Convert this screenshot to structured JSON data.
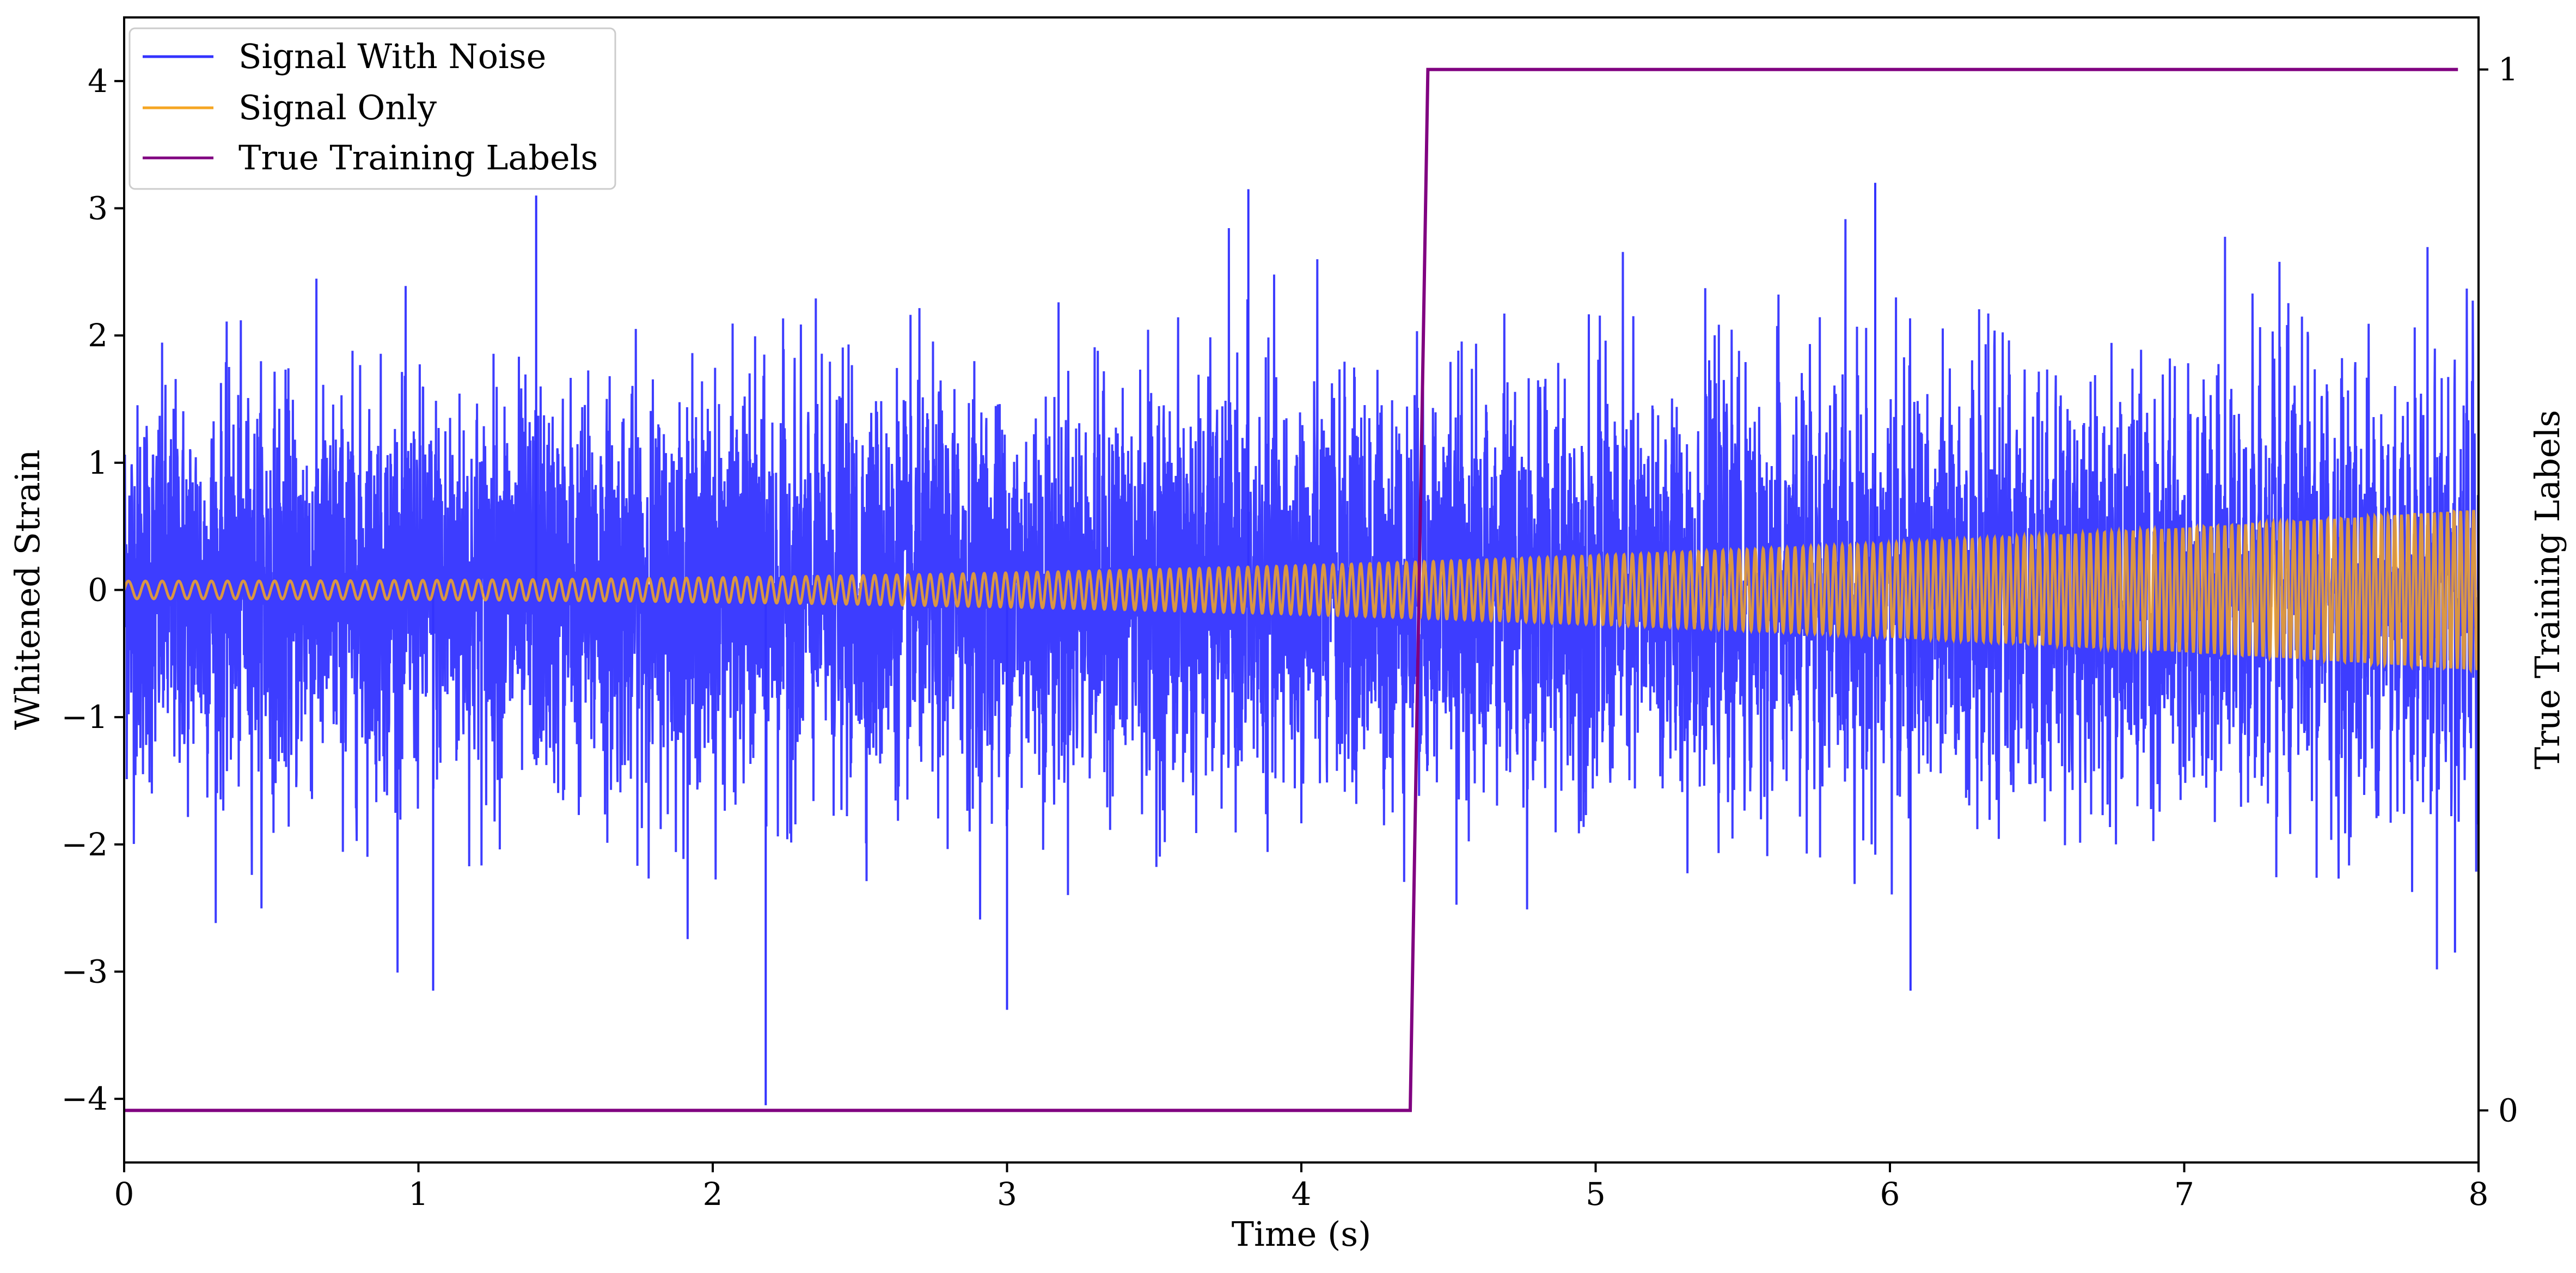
{
  "chart_data": {
    "type": "line",
    "title": "",
    "xlabel": "Time (s)",
    "ylabel": "Whitened Strain",
    "y2label": "True Training Labels",
    "xlim": [
      0,
      8
    ],
    "ylim": [
      -4.5,
      4.5
    ],
    "y2lim": [
      -0.05,
      1.05
    ],
    "x_ticks": [
      {
        "value": 0,
        "label": "0"
      },
      {
        "value": 1,
        "label": "1"
      },
      {
        "value": 2,
        "label": "2"
      },
      {
        "value": 3,
        "label": "3"
      },
      {
        "value": 4,
        "label": "4"
      },
      {
        "value": 5,
        "label": "5"
      },
      {
        "value": 6,
        "label": "6"
      },
      {
        "value": 7,
        "label": "7"
      },
      {
        "value": 8,
        "label": "8"
      }
    ],
    "y_ticks": [
      {
        "value": 4,
        "label": "4"
      },
      {
        "value": 3,
        "label": "3"
      },
      {
        "value": 2,
        "label": "2"
      },
      {
        "value": 1,
        "label": "1"
      },
      {
        "value": 0,
        "label": "0"
      },
      {
        "value": -1,
        "label": "−1"
      },
      {
        "value": -2,
        "label": "−2"
      },
      {
        "value": -3,
        "label": "−3"
      },
      {
        "value": -4,
        "label": "−4"
      }
    ],
    "y2_ticks": [
      {
        "value": 1,
        "label": "1"
      },
      {
        "value": 0,
        "label": "0"
      }
    ],
    "grid": false,
    "legend_position": "top-left",
    "series": [
      {
        "name": "Signal With Noise",
        "color": "#3333ff",
        "axis": "left",
        "x_range": [
          0,
          8
        ],
        "noise_std": 0.75,
        "max_abs_value": 4.05,
        "peaks": [
          {
            "x": 1.4,
            "y": 3.1
          },
          {
            "x": 3.82,
            "y": 3.15
          },
          {
            "x": 5.95,
            "y": 3.2
          },
          {
            "x": 2.18,
            "y": -4.05
          },
          {
            "x": 1.05,
            "y": -3.15
          },
          {
            "x": 3.0,
            "y": -3.3
          },
          {
            "x": 6.07,
            "y": -3.15
          },
          {
            "x": 7.92,
            "y": -2.85
          }
        ]
      },
      {
        "name": "Signal Only",
        "color": "#f5a623",
        "axis": "left",
        "x_range": [
          0,
          8
        ],
        "amplitude_start": 0.07,
        "amplitude_end": 0.63,
        "cycles_total": 250
      },
      {
        "name": "True Training Labels",
        "color": "#800080",
        "axis": "right",
        "points": [
          {
            "x": 0,
            "y": 0
          },
          {
            "x": 4.37,
            "y": 0
          },
          {
            "x": 4.43,
            "y": 1
          },
          {
            "x": 7.93,
            "y": 1
          }
        ]
      }
    ]
  }
}
